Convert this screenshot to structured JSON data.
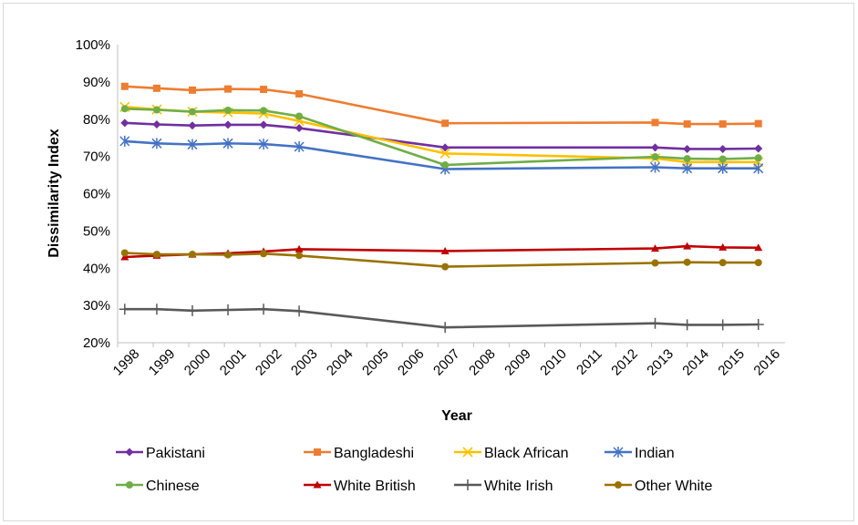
{
  "chart_data": {
    "type": "line",
    "title": "",
    "xlabel": "Year",
    "ylabel": "Dissimilarity Index",
    "ylim": [
      0.2,
      1.0
    ],
    "y_ticks": [
      "20%",
      "30%",
      "40%",
      "50%",
      "60%",
      "70%",
      "80%",
      "90%",
      "100%"
    ],
    "x_ticks": [
      "1998",
      "1999",
      "2000",
      "2001",
      "2002",
      "2003",
      "2004",
      "2005",
      "2006",
      "2007",
      "2008",
      "2009",
      "2010",
      "2011",
      "2012",
      "2013",
      "2014",
      "2015",
      "2016"
    ],
    "x_range": [
      1998,
      2016.75
    ],
    "grid": false,
    "legend_position": "bottom",
    "series": [
      {
        "name": "Pakistani",
        "color": "#7030A0",
        "marker": "diamond",
        "points": [
          [
            1998.2,
            0.79
          ],
          [
            1999.1,
            0.786
          ],
          [
            2000.1,
            0.783
          ],
          [
            2001.1,
            0.785
          ],
          [
            2002.1,
            0.785
          ],
          [
            2003.1,
            0.776
          ],
          [
            2007.2,
            0.724
          ],
          [
            2013.1,
            0.724
          ],
          [
            2014,
            0.72
          ],
          [
            2015,
            0.72
          ],
          [
            2016,
            0.721
          ]
        ]
      },
      {
        "name": "Bangladeshi",
        "color": "#ED7D31",
        "marker": "square",
        "points": [
          [
            1998.2,
            0.888
          ],
          [
            1999.1,
            0.883
          ],
          [
            2000.1,
            0.878
          ],
          [
            2001.1,
            0.881
          ],
          [
            2002.1,
            0.88
          ],
          [
            2003.1,
            0.868
          ],
          [
            2007.2,
            0.789
          ],
          [
            2013.1,
            0.791
          ],
          [
            2014,
            0.787
          ],
          [
            2015,
            0.787
          ],
          [
            2016,
            0.788
          ]
        ]
      },
      {
        "name": "Black African",
        "color": "#FFC000",
        "marker": "x",
        "points": [
          [
            1998.2,
            0.833
          ],
          [
            1999.1,
            0.826
          ],
          [
            2000.1,
            0.82
          ],
          [
            2001.1,
            0.818
          ],
          [
            2002.1,
            0.815
          ],
          [
            2003.1,
            0.795
          ],
          [
            2007.2,
            0.708
          ],
          [
            2013.1,
            0.695
          ],
          [
            2014,
            0.685
          ],
          [
            2015,
            0.685
          ],
          [
            2016,
            0.685
          ]
        ]
      },
      {
        "name": "Indian",
        "color": "#4472C4",
        "marker": "asterisk",
        "points": [
          [
            1998.2,
            0.741
          ],
          [
            1999.1,
            0.735
          ],
          [
            2000.1,
            0.732
          ],
          [
            2001.1,
            0.735
          ],
          [
            2002.1,
            0.733
          ],
          [
            2003.1,
            0.726
          ],
          [
            2007.2,
            0.666
          ],
          [
            2013.1,
            0.671
          ],
          [
            2014,
            0.668
          ],
          [
            2015,
            0.668
          ],
          [
            2016,
            0.668
          ]
        ]
      },
      {
        "name": "Chinese",
        "color": "#70AD47",
        "marker": "circle",
        "points": [
          [
            1998.2,
            0.828
          ],
          [
            1999.1,
            0.825
          ],
          [
            2000.1,
            0.82
          ],
          [
            2001.1,
            0.824
          ],
          [
            2002.1,
            0.823
          ],
          [
            2003.1,
            0.808
          ],
          [
            2007.2,
            0.677
          ],
          [
            2013.1,
            0.699
          ],
          [
            2014,
            0.694
          ],
          [
            2015,
            0.693
          ],
          [
            2016,
            0.696
          ]
        ]
      },
      {
        "name": "White British",
        "color": "#C00000",
        "marker": "triangle",
        "points": [
          [
            1998.2,
            0.43
          ],
          [
            1999.1,
            0.434
          ],
          [
            2000.1,
            0.437
          ],
          [
            2001.1,
            0.44
          ],
          [
            2002.1,
            0.445
          ],
          [
            2003.1,
            0.451
          ],
          [
            2007.2,
            0.446
          ],
          [
            2013.1,
            0.453
          ],
          [
            2014,
            0.459
          ],
          [
            2015,
            0.456
          ],
          [
            2016,
            0.455
          ]
        ]
      },
      {
        "name": "White Irish",
        "color": "#595959",
        "marker": "plus",
        "points": [
          [
            1998.2,
            0.29
          ],
          [
            1999.1,
            0.29
          ],
          [
            2000.1,
            0.286
          ],
          [
            2001.1,
            0.288
          ],
          [
            2002.1,
            0.29
          ],
          [
            2003.1,
            0.285
          ],
          [
            2007.2,
            0.241
          ],
          [
            2013.1,
            0.252
          ],
          [
            2014,
            0.248
          ],
          [
            2015,
            0.248
          ],
          [
            2016,
            0.249
          ]
        ]
      },
      {
        "name": "Other White",
        "color": "#997300",
        "marker": "circle",
        "points": [
          [
            1998.2,
            0.441
          ],
          [
            1999.1,
            0.437
          ],
          [
            2000.1,
            0.437
          ],
          [
            2001.1,
            0.436
          ],
          [
            2002.1,
            0.439
          ],
          [
            2003.1,
            0.434
          ],
          [
            2007.2,
            0.404
          ],
          [
            2013.1,
            0.414
          ],
          [
            2014,
            0.416
          ],
          [
            2015,
            0.415
          ],
          [
            2016,
            0.415
          ]
        ]
      }
    ]
  }
}
